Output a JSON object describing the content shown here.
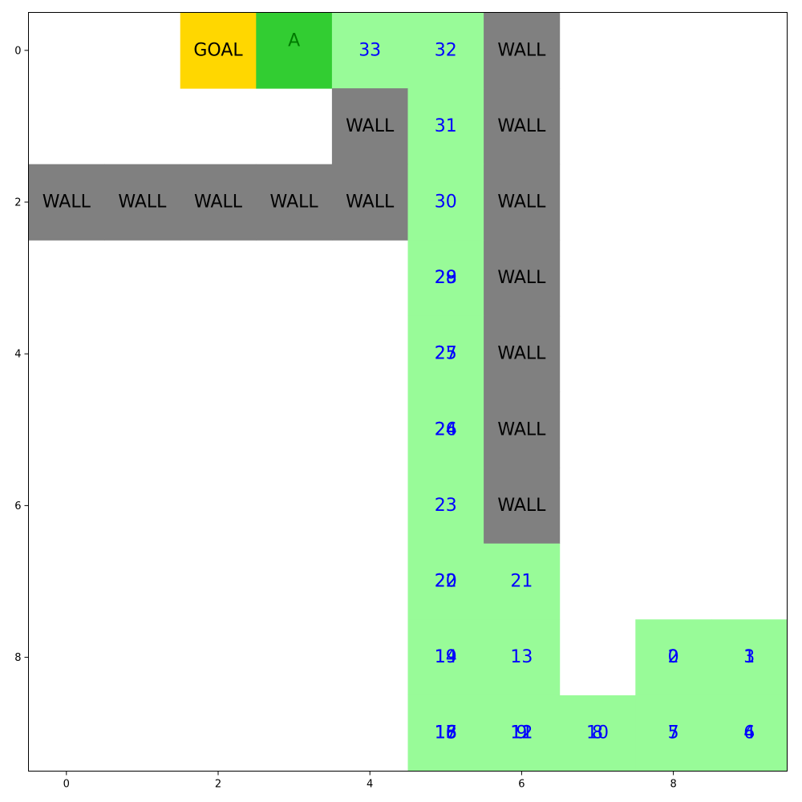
{
  "grid": {
    "rows": 10,
    "cols": 10,
    "colors": {
      "empty": "#ffffff",
      "wall": "#808080",
      "goal": "#ffd700",
      "agent": "#32cd32",
      "path": "#98fb98",
      "wall_text": "#000000",
      "goal_text": "#000000",
      "agent_text": "#007a00",
      "step_text": "#0000ff"
    },
    "labels": {
      "wall": "WALL",
      "goal": "GOAL",
      "agent": "A"
    },
    "walls": [
      [
        0,
        6
      ],
      [
        1,
        4
      ],
      [
        1,
        6
      ],
      [
        2,
        0
      ],
      [
        2,
        1
      ],
      [
        2,
        2
      ],
      [
        2,
        3
      ],
      [
        2,
        4
      ],
      [
        2,
        6
      ],
      [
        3,
        6
      ],
      [
        4,
        6
      ],
      [
        5,
        6
      ],
      [
        6,
        6
      ]
    ],
    "goal": [
      0,
      2
    ],
    "agent": [
      0,
      3
    ],
    "path": [
      [
        0,
        4
      ],
      [
        0,
        5
      ],
      [
        1,
        5
      ],
      [
        2,
        5
      ],
      [
        3,
        5
      ],
      [
        4,
        5
      ],
      [
        5,
        5
      ],
      [
        6,
        5
      ],
      [
        7,
        5
      ],
      [
        7,
        6
      ],
      [
        8,
        5
      ],
      [
        8,
        6
      ],
      [
        8,
        8
      ],
      [
        8,
        9
      ],
      [
        9,
        5
      ],
      [
        9,
        6
      ],
      [
        9,
        7
      ],
      [
        9,
        8
      ],
      [
        9,
        9
      ]
    ],
    "steps": [
      {
        "row": 8,
        "col": 8,
        "labels": [
          "0",
          "2"
        ]
      },
      {
        "row": 8,
        "col": 9,
        "labels": [
          "1",
          "3"
        ]
      },
      {
        "row": 9,
        "col": 9,
        "labels": [
          "4",
          "6"
        ]
      },
      {
        "row": 9,
        "col": 8,
        "labels": [
          "5",
          "7"
        ]
      },
      {
        "row": 9,
        "col": 7,
        "labels": [
          "8",
          "10"
        ]
      },
      {
        "row": 9,
        "col": 6,
        "labels": [
          "9",
          "11",
          "12"
        ]
      },
      {
        "row": 8,
        "col": 6,
        "labels": [
          "13"
        ]
      },
      {
        "row": 8,
        "col": 5,
        "labels": [
          "14",
          "19"
        ]
      },
      {
        "row": 9,
        "col": 5,
        "labels": [
          "15",
          "16",
          "17",
          "18"
        ]
      },
      {
        "row": 7,
        "col": 5,
        "labels": [
          "20",
          "22"
        ]
      },
      {
        "row": 7,
        "col": 6,
        "labels": [
          "21"
        ]
      },
      {
        "row": 6,
        "col": 5,
        "labels": [
          "23"
        ]
      },
      {
        "row": 5,
        "col": 5,
        "labels": [
          "24",
          "26"
        ]
      },
      {
        "row": 4,
        "col": 5,
        "labels": [
          "25",
          "27"
        ]
      },
      {
        "row": 3,
        "col": 5,
        "labels": [
          "28",
          "29"
        ]
      },
      {
        "row": 2,
        "col": 5,
        "labels": [
          "30"
        ]
      },
      {
        "row": 1,
        "col": 5,
        "labels": [
          "31"
        ]
      },
      {
        "row": 0,
        "col": 5,
        "labels": [
          "32"
        ]
      },
      {
        "row": 0,
        "col": 4,
        "labels": [
          "33"
        ]
      }
    ]
  },
  "axes": {
    "x_ticks": [
      "0",
      "2",
      "4",
      "6",
      "8"
    ],
    "y_ticks": [
      "0",
      "2",
      "4",
      "6",
      "8"
    ]
  }
}
